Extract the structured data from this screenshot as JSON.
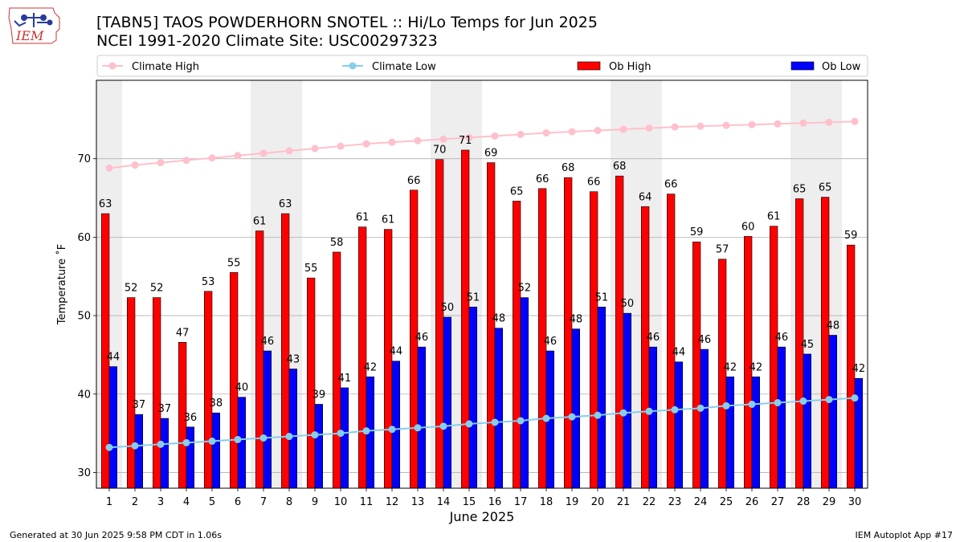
{
  "logo_text": "IEM",
  "chart_data": {
    "type": "bar",
    "title": "[TABN5] TAOS POWDERHORN SNOTEL :: Hi/Lo Temps for Jun 2025",
    "subtitle": "NCEI 1991-2020 Climate Site: USC00297323",
    "xlabel": "June 2025",
    "ylabel": "Temperature ˚F",
    "ylim": [
      28,
      80
    ],
    "yticks": [
      30,
      40,
      50,
      60,
      70
    ],
    "grid": "y",
    "legend_position": "top",
    "categories": [
      "1",
      "2",
      "3",
      "4",
      "5",
      "6",
      "7",
      "8",
      "9",
      "10",
      "11",
      "12",
      "13",
      "14",
      "15",
      "16",
      "17",
      "18",
      "19",
      "20",
      "21",
      "22",
      "23",
      "24",
      "25",
      "26",
      "27",
      "28",
      "29",
      "30"
    ],
    "weekend_days": [
      1,
      7,
      8,
      14,
      15,
      21,
      22,
      28,
      29
    ],
    "series": [
      {
        "name": "Climate High",
        "type": "line",
        "color": "#ffc0cb",
        "values": [
          68.8,
          69.2,
          69.5,
          69.8,
          70.1,
          70.4,
          70.7,
          71.0,
          71.3,
          71.6,
          71.9,
          72.1,
          72.3,
          72.5,
          72.7,
          72.9,
          73.1,
          73.3,
          73.45,
          73.6,
          73.75,
          73.9,
          74.05,
          74.15,
          74.25,
          74.35,
          74.45,
          74.55,
          74.65,
          74.75
        ]
      },
      {
        "name": "Climate Low",
        "type": "line",
        "color": "#87ceeb",
        "values": [
          33.2,
          33.4,
          33.6,
          33.8,
          34.0,
          34.2,
          34.4,
          34.6,
          34.8,
          35.0,
          35.3,
          35.5,
          35.7,
          35.9,
          36.2,
          36.4,
          36.6,
          36.9,
          37.1,
          37.3,
          37.6,
          37.8,
          38.0,
          38.2,
          38.5,
          38.7,
          38.9,
          39.1,
          39.3,
          39.5
        ]
      },
      {
        "name": "Ob High",
        "type": "bar",
        "color": "#ff0000",
        "values": [
          63.0,
          52.3,
          52.3,
          46.6,
          53.1,
          55.5,
          60.8,
          63.0,
          54.8,
          58.1,
          61.3,
          61.0,
          66.0,
          69.9,
          71.1,
          69.5,
          64.6,
          66.2,
          67.6,
          65.8,
          67.8,
          63.9,
          65.5,
          59.4,
          57.2,
          60.1,
          61.4,
          64.9,
          65.1,
          59.0
        ],
        "labels": [
          "63",
          "52",
          "52",
          "47",
          "53",
          "55",
          "61",
          "63",
          "55",
          "58",
          "61",
          "61",
          "66",
          "70",
          "71",
          "69",
          "65",
          "66",
          "68",
          "66",
          "68",
          "64",
          "66",
          "59",
          "57",
          "60",
          "61",
          "65",
          "65",
          "59"
        ]
      },
      {
        "name": "Ob Low",
        "type": "bar",
        "color": "#0000ff",
        "values": [
          43.5,
          37.4,
          36.9,
          35.8,
          37.6,
          39.6,
          45.5,
          43.2,
          38.7,
          40.8,
          42.2,
          44.2,
          46.0,
          49.8,
          51.1,
          48.4,
          52.3,
          45.5,
          48.3,
          51.1,
          50.3,
          46.0,
          44.1,
          45.7,
          42.2,
          42.2,
          46.0,
          45.1,
          47.5,
          42.0
        ],
        "labels": [
          "44",
          "37",
          "37",
          "36",
          "38",
          "40",
          "46",
          "43",
          "39",
          "41",
          "42",
          "44",
          "46",
          "50",
          "51",
          "48",
          "52",
          "46",
          "48",
          "51",
          "50",
          "46",
          "44",
          "46",
          "42",
          "42",
          "46",
          "45",
          "48",
          "42"
        ]
      }
    ]
  },
  "footer": {
    "left": "Generated at 30 Jun 2025 9:58 PM CDT in 1.06s",
    "right": "IEM Autoplot App #17"
  }
}
